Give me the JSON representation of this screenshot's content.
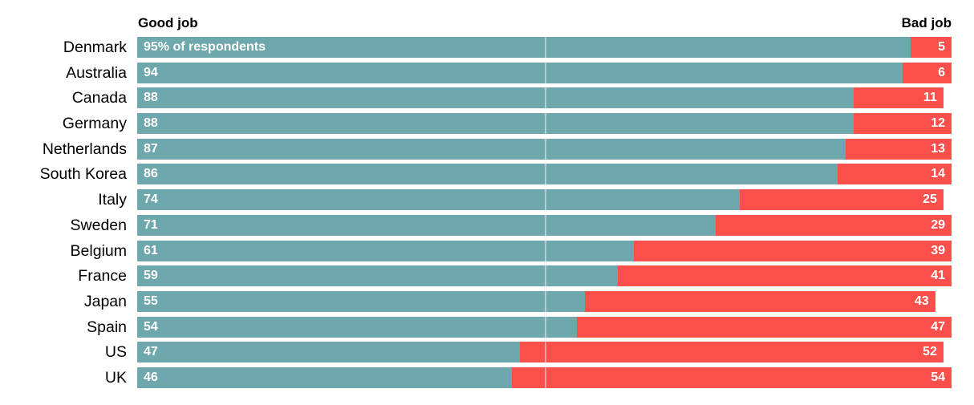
{
  "colors": {
    "good_bar": "#6FA8AC",
    "bad_bar": "#FB4F4C",
    "bar_text": "#FFFFFF",
    "label_text": "#000000",
    "background": "#FFFFFF",
    "gridline": "rgba(255,255,255,0.45)"
  },
  "header": {
    "left_label": "Good job",
    "right_label": "Bad job"
  },
  "rows": [
    {
      "label": "Denmark",
      "good": 95,
      "bad": 5,
      "good_label": "95% of respondents",
      "bad_label": "5"
    },
    {
      "label": "Australia",
      "good": 94,
      "bad": 6,
      "good_label": "94",
      "bad_label": "6"
    },
    {
      "label": "Canada",
      "good": 88,
      "bad": 11,
      "good_label": "88",
      "bad_label": "11"
    },
    {
      "label": "Germany",
      "good": 88,
      "bad": 12,
      "good_label": "88",
      "bad_label": "12"
    },
    {
      "label": "Netherlands",
      "good": 87,
      "bad": 13,
      "good_label": "87",
      "bad_label": "13"
    },
    {
      "label": "South Korea",
      "good": 86,
      "bad": 14,
      "good_label": "86",
      "bad_label": "14"
    },
    {
      "label": "Italy",
      "good": 74,
      "bad": 25,
      "good_label": "74",
      "bad_label": "25"
    },
    {
      "label": "Sweden",
      "good": 71,
      "bad": 29,
      "good_label": "71",
      "bad_label": "29"
    },
    {
      "label": "Belgium",
      "good": 61,
      "bad": 39,
      "good_label": "61",
      "bad_label": "39"
    },
    {
      "label": "France",
      "good": 59,
      "bad": 41,
      "good_label": "59",
      "bad_label": "41"
    },
    {
      "label": "Japan",
      "good": 55,
      "bad": 43,
      "good_label": "55",
      "bad_label": "43"
    },
    {
      "label": "Spain",
      "good": 54,
      "bad": 47,
      "good_label": "54",
      "bad_label": "47"
    },
    {
      "label": "US",
      "good": 47,
      "bad": 52,
      "good_label": "47",
      "bad_label": "52"
    },
    {
      "label": "UK",
      "good": 46,
      "bad": 54,
      "good_label": "46",
      "bad_label": "54"
    }
  ],
  "chart_data": {
    "type": "bar",
    "subtype": "horizontal-stacked",
    "title": "",
    "categories": [
      "Denmark",
      "Australia",
      "Canada",
      "Germany",
      "Netherlands",
      "South Korea",
      "Italy",
      "Sweden",
      "Belgium",
      "France",
      "Japan",
      "Spain",
      "US",
      "UK"
    ],
    "series": [
      {
        "name": "Good job",
        "color": "#6FA8AC",
        "values": [
          95,
          94,
          88,
          88,
          87,
          86,
          74,
          71,
          61,
          59,
          55,
          54,
          47,
          46
        ]
      },
      {
        "name": "Bad job",
        "color": "#FB4F4C",
        "values": [
          5,
          6,
          11,
          12,
          13,
          14,
          25,
          29,
          39,
          41,
          43,
          47,
          52,
          54
        ]
      }
    ],
    "value_annotation_first_bar": "95% of respondents",
    "xlabel": "",
    "ylabel": "",
    "xlim": [
      0,
      100
    ],
    "gridline_at": 50,
    "legend_position": "top-headers",
    "value_labels": "inside-bars",
    "grid": "single-vertical-midline"
  }
}
